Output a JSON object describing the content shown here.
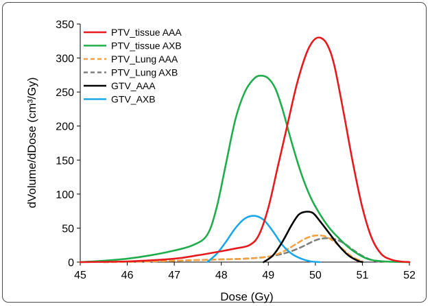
{
  "chart_data": {
    "type": "line",
    "xlabel": "Dose (Gy)",
    "ylabel": "dVolume/dDose (cm³/Gy)",
    "xlim": [
      45,
      52
    ],
    "ylim": [
      0,
      350
    ],
    "xticks": [
      45,
      46,
      47,
      48,
      49,
      50,
      51,
      52
    ],
    "yticks": [
      0,
      50,
      100,
      150,
      200,
      250,
      300,
      350
    ],
    "grid": false,
    "legend": "top-left",
    "series": [
      {
        "name": "PTV_tissue AAA",
        "color": "#e8191c",
        "dash": "solid",
        "x": [
          45.0,
          46.0,
          47.0,
          47.5,
          48.0,
          48.3,
          48.6,
          48.8,
          49.0,
          49.2,
          49.4,
          49.6,
          49.8,
          49.95,
          50.1,
          50.25,
          50.4,
          50.6,
          50.8,
          51.0,
          51.2,
          51.4,
          51.6,
          51.8,
          52.0
        ],
        "y": [
          0,
          1,
          5,
          10,
          16,
          20,
          25,
          40,
          80,
          140,
          200,
          260,
          305,
          325,
          330,
          320,
          290,
          220,
          145,
          80,
          35,
          12,
          4,
          1,
          0
        ]
      },
      {
        "name": "PTV_tissue AXB",
        "color": "#1fad4b",
        "dash": "solid",
        "x": [
          45.0,
          45.5,
          46.0,
          46.5,
          47.0,
          47.4,
          47.7,
          47.9,
          48.1,
          48.3,
          48.5,
          48.7,
          48.85,
          49.0,
          49.15,
          49.3,
          49.5,
          49.7,
          49.9,
          50.1,
          50.3,
          50.5,
          50.7,
          50.9,
          51.1,
          51.3,
          51.6,
          52.0
        ],
        "y": [
          0,
          2,
          5,
          10,
          17,
          25,
          40,
          80,
          145,
          210,
          250,
          270,
          274,
          270,
          255,
          225,
          175,
          130,
          95,
          70,
          50,
          35,
          22,
          12,
          5,
          2,
          0.5,
          0
        ]
      },
      {
        "name": "PTV_Lung AAA",
        "color": "#f5a142",
        "dash": "dashed",
        "x": [
          45.5,
          46.5,
          47.5,
          48.5,
          49.0,
          49.3,
          49.6,
          49.8,
          50.0,
          50.2,
          50.4,
          50.6,
          50.8,
          51.0
        ],
        "y": [
          0,
          1,
          3,
          5,
          8,
          15,
          27,
          35,
          39,
          38,
          30,
          18,
          7,
          1
        ]
      },
      {
        "name": "PTV_Lung AXB",
        "color": "#7f7f7f",
        "dash": "dashed",
        "x": [
          45.5,
          46.5,
          47.5,
          48.0,
          48.5,
          49.0,
          49.4,
          49.7,
          50.0,
          50.2,
          50.4,
          50.6,
          50.8,
          51.0,
          51.2,
          51.4
        ],
        "y": [
          0,
          1,
          3,
          4,
          5,
          8,
          14,
          22,
          32,
          35,
          34,
          28,
          18,
          9,
          3,
          0
        ]
      },
      {
        "name": "GTV_AAA",
        "color": "#000000",
        "dash": "solid",
        "x": [
          48.9,
          49.1,
          49.3,
          49.5,
          49.65,
          49.8,
          49.95,
          50.1,
          50.3,
          50.5,
          50.7,
          50.9,
          51.0
        ],
        "y": [
          0,
          10,
          30,
          55,
          70,
          74,
          72,
          60,
          42,
          24,
          10,
          2,
          0
        ]
      },
      {
        "name": "GTV_AXB",
        "color": "#1aa7e8",
        "dash": "solid",
        "x": [
          47.7,
          47.9,
          48.1,
          48.3,
          48.5,
          48.7,
          48.9,
          49.1,
          49.3,
          49.5,
          49.7,
          49.9,
          50.1
        ],
        "y": [
          0,
          12,
          30,
          50,
          64,
          68,
          62,
          45,
          25,
          12,
          5,
          1,
          0
        ]
      }
    ]
  }
}
